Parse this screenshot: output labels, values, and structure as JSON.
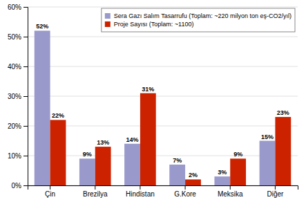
{
  "chart_data": {
    "type": "bar",
    "categories": [
      "Çin",
      "Brezilya",
      "Hindistan",
      "G.Kore",
      "Meksika",
      "Diğer"
    ],
    "series": [
      {
        "name": "Sera Gazı Salım Tasarrufu (Toplam: ~220 milyon ton eş-CO2/yıl)",
        "color": "#9999cc",
        "values": [
          52,
          9,
          14,
          7,
          3,
          15
        ],
        "value_labels": [
          "52%",
          "9%",
          "14%",
          "7%",
          "3%",
          "15%"
        ]
      },
      {
        "name": "Proje Sayısı (Toplam: ~1100)",
        "color": "#cc2200",
        "values": [
          22,
          13,
          31,
          2,
          9,
          23
        ],
        "value_labels": [
          "22%",
          "13%",
          "31%",
          "2%",
          "9%",
          "23%"
        ]
      }
    ],
    "ylim": [
      0,
      60
    ],
    "yticks": [
      {
        "value": 0,
        "label": "0%"
      },
      {
        "value": 10,
        "label": "10%"
      },
      {
        "value": 20,
        "label": "20%"
      },
      {
        "value": 30,
        "label": "30%"
      },
      {
        "value": 40,
        "label": "40%"
      },
      {
        "value": 50,
        "label": "50%"
      },
      {
        "value": 60,
        "label": "60%"
      }
    ],
    "grid": true,
    "legend": "upper right",
    "data_labels": true
  }
}
